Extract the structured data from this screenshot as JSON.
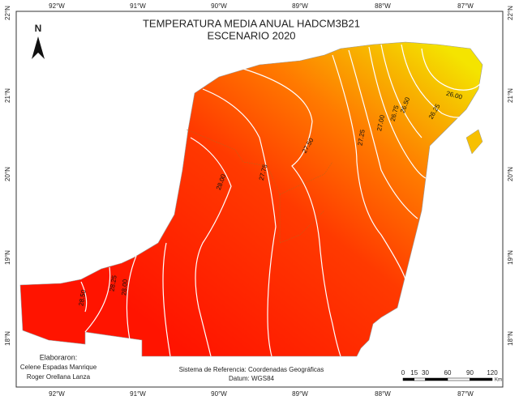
{
  "title": [
    "TEMPERATURA MEDIA ANUAL HADCM3B21",
    "ESCENARIO 2020"
  ],
  "north": "N",
  "longitude_labels": [
    "92°W",
    "91°W",
    "90°W",
    "89°W",
    "88°W",
    "87°W"
  ],
  "latitude_labels": [
    "22°N",
    "21°N",
    "20°N",
    "19°N",
    "18°N"
  ],
  "contour_labels": [
    "28.50",
    "28.25",
    "28.00",
    "28.00",
    "27.75",
    "27.50",
    "27.25",
    "27.00",
    "26.75",
    "26.50",
    "26.25",
    "26.00"
  ],
  "credits": {
    "heading": "Elaboraron:",
    "authors": [
      "Celene Espadas Manrique",
      "Roger Orellana Lanza"
    ]
  },
  "reference": {
    "system": "Sistema de Referencia: Coordenadas Geográficas",
    "datum": "Datum: WGS84"
  },
  "scale_bar": {
    "ticks": [
      0,
      15,
      30,
      60,
      90,
      120
    ],
    "unit": "Km"
  }
}
